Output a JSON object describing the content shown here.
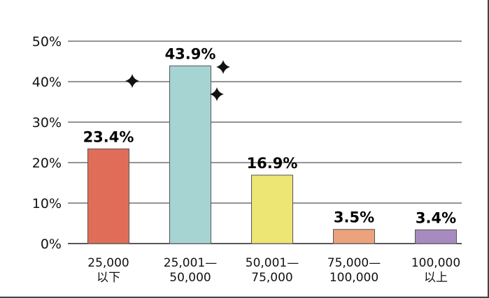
{
  "chart_data": {
    "type": "bar",
    "categories": [
      [
        "25,000",
        "以下"
      ],
      [
        "25,001—",
        "50,000"
      ],
      [
        "50,001—",
        "75,000"
      ],
      [
        "75,000—",
        "100,000"
      ],
      [
        "100,000",
        "以上"
      ]
    ],
    "values": [
      23.4,
      43.9,
      16.9,
      3.5,
      3.4
    ],
    "data_labels": [
      "23.4%",
      "43.9%",
      "16.9%",
      "3.5%",
      "3.4%"
    ],
    "bar_colors": [
      "#df6d58",
      "#a6d4d3",
      "#ede574",
      "#eba27d",
      "#a78bc0"
    ],
    "ylim": [
      0,
      50
    ],
    "yticks": [
      0,
      10,
      20,
      30,
      40,
      50
    ],
    "ytick_labels": [
      "0%",
      "10%",
      "20%",
      "30%",
      "40%",
      "50%"
    ],
    "grid": true,
    "highlight_icon": "sparkle-icon",
    "highlight_index": 1
  }
}
